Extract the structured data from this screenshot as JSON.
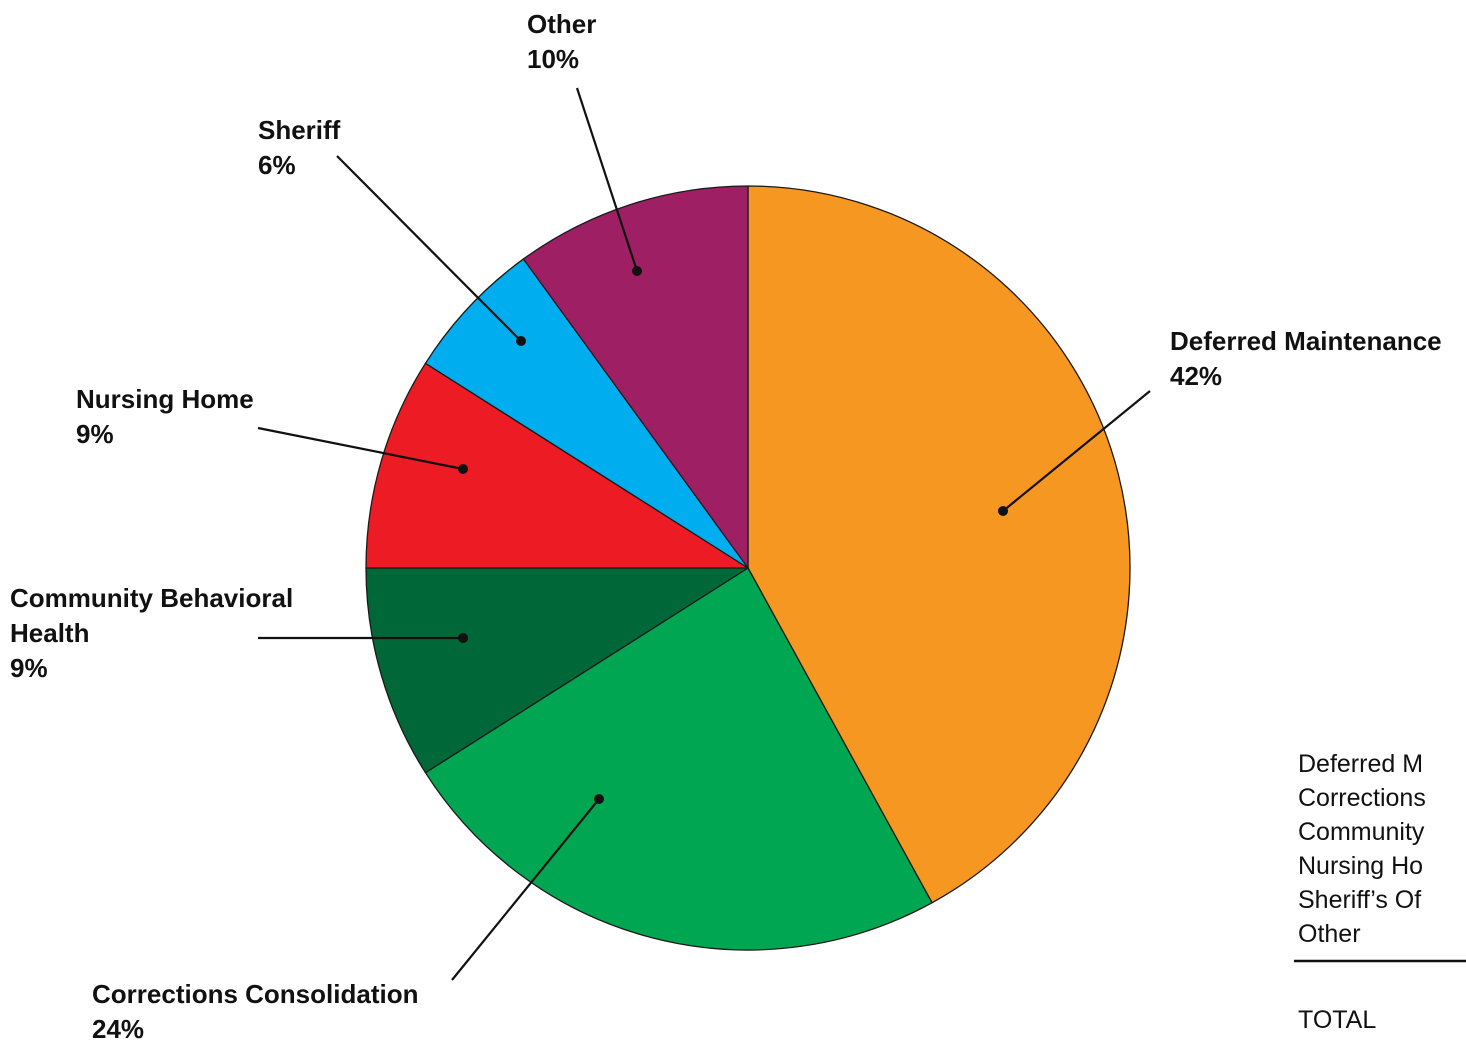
{
  "chart_data": {
    "type": "pie",
    "title": "",
    "slices": [
      {
        "key": "deferred",
        "label_lines": [
          "Deferred Maintenance"
        ],
        "pct_text": "42%",
        "value": 42,
        "color": "#F59721"
      },
      {
        "key": "corrections",
        "label_lines": [
          "Corrections Consolidation"
        ],
        "pct_text": "24%",
        "value": 24,
        "color": "#00A651"
      },
      {
        "key": "community",
        "label_lines": [
          "Community Behavioral",
          "Health"
        ],
        "pct_text": "9%",
        "value": 9,
        "color": "#006838"
      },
      {
        "key": "nursing",
        "label_lines": [
          "Nursing Home"
        ],
        "pct_text": "9%",
        "value": 9,
        "color": "#ED1C24"
      },
      {
        "key": "sheriff",
        "label_lines": [
          "Sheriff"
        ],
        "pct_text": "6%",
        "value": 6,
        "color": "#00AEEF"
      },
      {
        "key": "other",
        "label_lines": [
          "Other"
        ],
        "pct_text": "10%",
        "value": 10,
        "color": "#9E1F63"
      }
    ],
    "table_rows": [
      "Deferred M",
      "Corrections",
      "Community",
      "Nursing Ho",
      "Sheriff’s Of",
      "Other"
    ],
    "table_total_label": "TOTAL"
  }
}
